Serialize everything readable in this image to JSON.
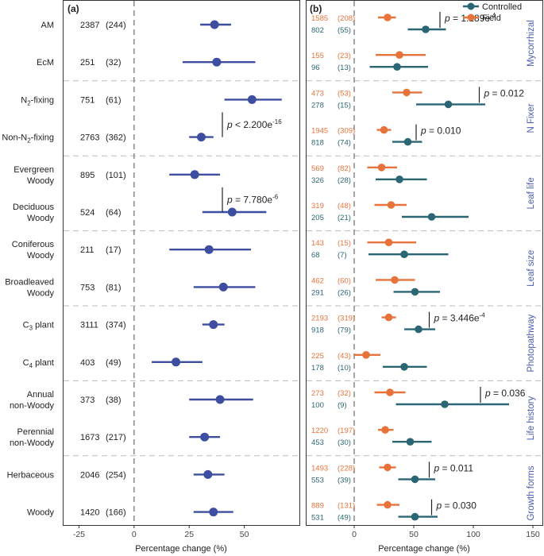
{
  "colors": {
    "panel_a": "#3d4ea0",
    "controlled": "#2a6673",
    "field": "#e8733a",
    "axis": "#333333",
    "group_label": "#4a5db0",
    "divider": "#bbbbbb"
  },
  "chart_data": [
    {
      "type": "forest",
      "panel_label": "(a)",
      "xlabel": "Percentage change (%)",
      "xlim": [
        -32,
        75
      ],
      "xticks": [
        -25,
        0,
        25,
        50
      ],
      "zero_line": true,
      "rows": [
        {
          "label": [
            "AM"
          ],
          "n": "2387",
          "k": "(244)",
          "mean": 36.5,
          "lo": 30,
          "hi": 44
        },
        {
          "label": [
            "EcM"
          ],
          "n": "251",
          "k": "(32)",
          "mean": 37.5,
          "lo": 22,
          "hi": 55
        },
        {
          "label": [
            "N2-fixing"
          ],
          "n": "751",
          "k": "(61)",
          "mean": 53.5,
          "lo": 41,
          "hi": 67
        },
        {
          "label": [
            "Non-N2-fixing"
          ],
          "n": "2763",
          "k": "(362)",
          "mean": 30.5,
          "lo": 25,
          "hi": 36
        },
        {
          "label": [
            "Evergreen",
            "Woody"
          ],
          "n": "895",
          "k": "(101)",
          "mean": 27.5,
          "lo": 16,
          "hi": 39
        },
        {
          "label": [
            "Deciduous",
            "Woody"
          ],
          "n": "524",
          "k": "(64)",
          "mean": 44.5,
          "lo": 31,
          "hi": 60
        },
        {
          "label": [
            "Coniferous",
            "Woody"
          ],
          "n": "211",
          "k": "(17)",
          "mean": 34,
          "lo": 16,
          "hi": 53
        },
        {
          "label": [
            "Broadleaved",
            "Woody"
          ],
          "n": "753",
          "k": "(81)",
          "mean": 40.5,
          "lo": 27,
          "hi": 55
        },
        {
          "label": [
            "C3 plant"
          ],
          "n": "3111",
          "k": "(374)",
          "mean": 36,
          "lo": 31,
          "hi": 41
        },
        {
          "label": [
            "C4 plant"
          ],
          "n": "403",
          "k": "(49)",
          "mean": 19,
          "lo": 8,
          "hi": 31
        },
        {
          "label": [
            "Annual",
            "non-Woody"
          ],
          "n": "373",
          "k": "(38)",
          "mean": 39,
          "lo": 25,
          "hi": 54
        },
        {
          "label": [
            "Perennial",
            "non-Woody"
          ],
          "n": "1673",
          "k": "(217)",
          "mean": 32,
          "lo": 25,
          "hi": 39
        },
        {
          "label": [
            "Herbaceous"
          ],
          "n": "2046",
          "k": "(254)",
          "mean": 33.5,
          "lo": 27,
          "hi": 41
        },
        {
          "label": [
            "Woody"
          ],
          "n": "1420",
          "k": "(166)",
          "mean": 36,
          "lo": 27,
          "hi": 45
        }
      ],
      "annotations": [
        {
          "text_prefix": "p",
          "text_value": " < 2.200e",
          "exponent": "-16",
          "rows": [
            2,
            3
          ]
        },
        {
          "text_prefix": "p",
          "text_value": " = 7.780e",
          "exponent": "-6",
          "rows": [
            4,
            5
          ]
        }
      ]
    },
    {
      "type": "forest",
      "panel_label": "(b)",
      "xlabel": "Percentage change (%)",
      "xlim": [
        -40,
        158
      ],
      "xticks": [
        0,
        50,
        100,
        150
      ],
      "zero_line": true,
      "legend": {
        "position": "top-right",
        "entries": [
          "Controlled",
          "Field"
        ]
      },
      "series": [
        "Field",
        "Controlled"
      ],
      "groups": [
        "Mycorrhizal",
        "N Fixer",
        "Leaf life",
        "Leaf size",
        "Photopathway",
        "Life history",
        "Growth forms"
      ],
      "rows": [
        {
          "field": {
            "n": "1585",
            "k": "(208)",
            "mean": 28,
            "lo": 20,
            "hi": 35
          },
          "controlled": {
            "n": "802",
            "k": "(55)",
            "mean": 60,
            "lo": 45,
            "hi": 77
          }
        },
        {
          "field": {
            "n": "155",
            "k": "(23)",
            "mean": 38,
            "lo": 18,
            "hi": 60
          },
          "controlled": {
            "n": "96",
            "k": "(13)",
            "mean": 36,
            "lo": 13,
            "hi": 62
          }
        },
        {
          "field": {
            "n": "473",
            "k": "(53)",
            "mean": 44,
            "lo": 32,
            "hi": 57
          },
          "controlled": {
            "n": "278",
            "k": "(15)",
            "mean": 79,
            "lo": 52,
            "hi": 110
          }
        },
        {
          "field": {
            "n": "1945",
            "k": "(309)",
            "mean": 25,
            "lo": 19,
            "hi": 31
          },
          "controlled": {
            "n": "818",
            "k": "(74)",
            "mean": 45,
            "lo": 32,
            "hi": 57
          }
        },
        {
          "field": {
            "n": "569",
            "k": "(82)",
            "mean": 23,
            "lo": 11,
            "hi": 36
          },
          "controlled": {
            "n": "326",
            "k": "(28)",
            "mean": 38,
            "lo": 18,
            "hi": 61
          }
        },
        {
          "field": {
            "n": "319",
            "k": "(48)",
            "mean": 31,
            "lo": 17,
            "hi": 44
          },
          "controlled": {
            "n": "205",
            "k": "(21)",
            "mean": 65,
            "lo": 40,
            "hi": 96
          }
        },
        {
          "field": {
            "n": "143",
            "k": "(15)",
            "mean": 29,
            "lo": 11,
            "hi": 52
          },
          "controlled": {
            "n": "68",
            "k": "(7)",
            "mean": 42,
            "lo": 12,
            "hi": 79
          }
        },
        {
          "field": {
            "n": "462",
            "k": "(60)",
            "mean": 34,
            "lo": 18,
            "hi": 51
          },
          "controlled": {
            "n": "291",
            "k": "(26)",
            "mean": 51,
            "lo": 33,
            "hi": 72
          }
        },
        {
          "field": {
            "n": "2193",
            "k": "(319)",
            "mean": 29,
            "lo": 23,
            "hi": 35
          },
          "controlled": {
            "n": "918",
            "k": "(79)",
            "mean": 54,
            "lo": 42,
            "hi": 68
          }
        },
        {
          "field": {
            "n": "225",
            "k": "(43)",
            "mean": 10,
            "lo": 0,
            "hi": 22
          },
          "controlled": {
            "n": "178",
            "k": "(10)",
            "mean": 42,
            "lo": 24,
            "hi": 61
          }
        },
        {
          "field": {
            "n": "273",
            "k": "(32)",
            "mean": 30,
            "lo": 17,
            "hi": 43
          },
          "controlled": {
            "n": "100",
            "k": "(9)",
            "mean": 76,
            "lo": 35,
            "hi": 130
          }
        },
        {
          "field": {
            "n": "1220",
            "k": "(197)",
            "mean": 26,
            "lo": 20,
            "hi": 33
          },
          "controlled": {
            "n": "453",
            "k": "(30)",
            "mean": 47,
            "lo": 32,
            "hi": 65
          }
        },
        {
          "field": {
            "n": "1493",
            "k": "(228)",
            "mean": 28,
            "lo": 21,
            "hi": 35
          },
          "controlled": {
            "n": "553",
            "k": "(39)",
            "mean": 51,
            "lo": 37,
            "hi": 68
          }
        },
        {
          "field": {
            "n": "889",
            "k": "(131)",
            "mean": 28,
            "lo": 19,
            "hi": 38
          },
          "controlled": {
            "n": "531",
            "k": "(49)",
            "mean": 51,
            "lo": 37,
            "hi": 70
          }
        }
      ],
      "annotations": [
        {
          "text_prefix": "p",
          "text_value": " = 1.189e",
          "exponent": "-4",
          "row": 0
        },
        {
          "text_prefix": "p",
          "text_value": " = 0.012",
          "exponent": "",
          "row": 2
        },
        {
          "text_prefix": "p",
          "text_value": " = 0.010",
          "exponent": "",
          "row": 3
        },
        {
          "text_prefix": "p",
          "text_value": " = 3.446e",
          "exponent": "-4",
          "row": 8
        },
        {
          "text_prefix": "p",
          "text_value": " = 0.036",
          "exponent": "",
          "row": 10
        },
        {
          "text_prefix": "p",
          "text_value": " = 0.011",
          "exponent": "",
          "row": 12
        },
        {
          "text_prefix": "p",
          "text_value": " = 0.030",
          "exponent": "",
          "row": 13
        }
      ]
    }
  ]
}
